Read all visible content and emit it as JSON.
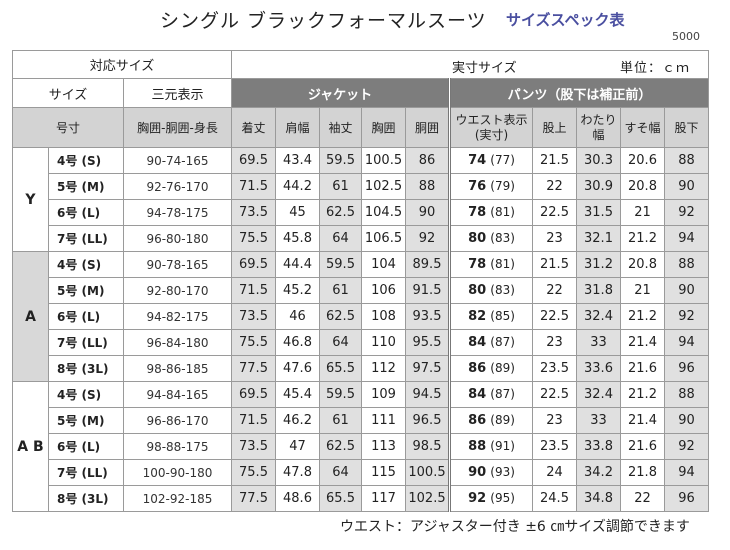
{
  "title": "シングル ブラックフォーマルスーツ",
  "subtitle": "サイズスペック表",
  "code": "5000",
  "footer_note": "ウエスト：アジャスター付き ±6 ㎝サイズ調節できます",
  "headers": {
    "corresponding_size": "対応サイズ",
    "actual_size": "実寸サイズ",
    "unit": "単位：ｃｍ",
    "size": "サイズ",
    "three_dim": "三元表示",
    "jacket": "ジャケット",
    "pants": "パンツ（股下は補正前）",
    "number": "号寸",
    "dims": "胸囲-胴囲-身長",
    "jacket_cols": [
      "着丈",
      "肩幅",
      "袖丈",
      "胸囲",
      "胴囲"
    ],
    "waist": "ウエスト表示",
    "waist_sub": "(実寸)",
    "rise": "股上",
    "thigh": "わたり",
    "thigh_sub": "幅",
    "hem": "すそ幅",
    "inseam": "股下"
  },
  "groups": [
    {
      "label": "Y",
      "rows": [
        {
          "size": "4号 (S)",
          "dims": "90-74-165",
          "jacket": [
            "69.5",
            "43.4",
            "59.5",
            "100.5",
            "86"
          ],
          "waist": "74",
          "waist_actual": "(77)",
          "pants": [
            "21.5",
            "30.3",
            "20.6",
            "88"
          ]
        },
        {
          "size": "5号 (M)",
          "dims": "92-76-170",
          "jacket": [
            "71.5",
            "44.2",
            "61",
            "102.5",
            "88"
          ],
          "waist": "76",
          "waist_actual": "(79)",
          "pants": [
            "22",
            "30.9",
            "20.8",
            "90"
          ]
        },
        {
          "size": "6号 (L)",
          "dims": "94-78-175",
          "jacket": [
            "73.5",
            "45",
            "62.5",
            "104.5",
            "90"
          ],
          "waist": "78",
          "waist_actual": "(81)",
          "pants": [
            "22.5",
            "31.5",
            "21",
            "92"
          ]
        },
        {
          "size": "7号 (LL)",
          "dims": "96-80-180",
          "jacket": [
            "75.5",
            "45.8",
            "64",
            "106.5",
            "92"
          ],
          "waist": "80",
          "waist_actual": "(83)",
          "pants": [
            "23",
            "32.1",
            "21.2",
            "94"
          ]
        }
      ]
    },
    {
      "label": "A",
      "rows": [
        {
          "size": "4号 (S)",
          "dims": "90-78-165",
          "jacket": [
            "69.5",
            "44.4",
            "59.5",
            "104",
            "89.5"
          ],
          "waist": "78",
          "waist_actual": "(81)",
          "pants": [
            "21.5",
            "31.2",
            "20.8",
            "88"
          ]
        },
        {
          "size": "5号 (M)",
          "dims": "92-80-170",
          "jacket": [
            "71.5",
            "45.2",
            "61",
            "106",
            "91.5"
          ],
          "waist": "80",
          "waist_actual": "(83)",
          "pants": [
            "22",
            "31.8",
            "21",
            "90"
          ]
        },
        {
          "size": "6号 (L)",
          "dims": "94-82-175",
          "jacket": [
            "73.5",
            "46",
            "62.5",
            "108",
            "93.5"
          ],
          "waist": "82",
          "waist_actual": "(85)",
          "pants": [
            "22.5",
            "32.4",
            "21.2",
            "92"
          ]
        },
        {
          "size": "7号 (LL)",
          "dims": "96-84-180",
          "jacket": [
            "75.5",
            "46.8",
            "64",
            "110",
            "95.5"
          ],
          "waist": "84",
          "waist_actual": "(87)",
          "pants": [
            "23",
            "33",
            "21.4",
            "94"
          ]
        },
        {
          "size": "8号 (3L)",
          "dims": "98-86-185",
          "jacket": [
            "77.5",
            "47.6",
            "65.5",
            "112",
            "97.5"
          ],
          "waist": "86",
          "waist_actual": "(89)",
          "pants": [
            "23.5",
            "33.6",
            "21.6",
            "96"
          ]
        }
      ]
    },
    {
      "label": "A B",
      "rows": [
        {
          "size": "4号 (S)",
          "dims": "94-84-165",
          "jacket": [
            "69.5",
            "45.4",
            "59.5",
            "109",
            "94.5"
          ],
          "waist": "84",
          "waist_actual": "(87)",
          "pants": [
            "22.5",
            "32.4",
            "21.2",
            "88"
          ]
        },
        {
          "size": "5号 (M)",
          "dims": "96-86-170",
          "jacket": [
            "71.5",
            "46.2",
            "61",
            "111",
            "96.5"
          ],
          "waist": "86",
          "waist_actual": "(89)",
          "pants": [
            "23",
            "33",
            "21.4",
            "90"
          ]
        },
        {
          "size": "6号 (L)",
          "dims": "98-88-175",
          "jacket": [
            "73.5",
            "47",
            "62.5",
            "113",
            "98.5"
          ],
          "waist": "88",
          "waist_actual": "(91)",
          "pants": [
            "23.5",
            "33.8",
            "21.6",
            "92"
          ]
        },
        {
          "size": "7号 (LL)",
          "dims": "100-90-180",
          "jacket": [
            "75.5",
            "47.8",
            "64",
            "115",
            "100.5"
          ],
          "waist": "90",
          "waist_actual": "(93)",
          "pants": [
            "24",
            "34.2",
            "21.8",
            "94"
          ]
        },
        {
          "size": "8号 (3L)",
          "dims": "102-92-185",
          "jacket": [
            "77.5",
            "48.6",
            "65.5",
            "117",
            "102.5"
          ],
          "waist": "92",
          "waist_actual": "(95)",
          "pants": [
            "24.5",
            "34.8",
            "22",
            "96"
          ]
        }
      ]
    }
  ]
}
